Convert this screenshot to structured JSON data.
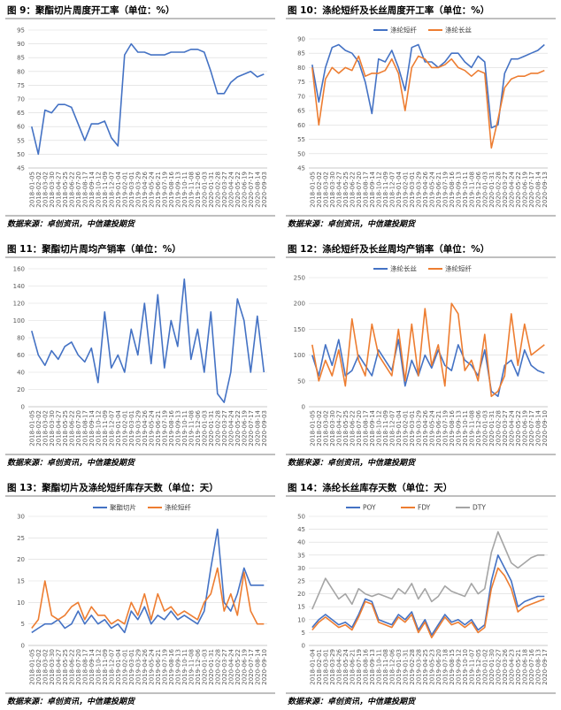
{
  "chart_data": [
    {
      "type": "line",
      "title": "图 9：聚酯切片周度开工率（单位：%）",
      "source": "数据来源：卓创资讯，中信建投期货",
      "categories": [
        "2018-01-05",
        "2018-02-02",
        "2018-03-02",
        "2018-03-30",
        "2018-04-27",
        "2018-05-25",
        "2018-06-22",
        "2018-07-20",
        "2018-08-17",
        "2018-09-14",
        "2018-10-12",
        "2018-11-09",
        "2018-12-07",
        "2019-01-04",
        "2019-02-01",
        "2019-03-01",
        "2019-03-29",
        "2019-04-26",
        "2019-05-24",
        "2019-06-21",
        "2019-07-19",
        "2019-08-16",
        "2019-09-13",
        "2019-10-11",
        "2019-11-08",
        "2019-12-06",
        "2020-01-03",
        "2020-01-31",
        "2020-02-28",
        "2020-03-27",
        "2020-04-24",
        "2020-05-22",
        "2020-06-19",
        "2020-07-17",
        "2020-08-14",
        "2020-09-03"
      ],
      "color": "#4472c4",
      "values": [
        60,
        50,
        66,
        65,
        68,
        68,
        67,
        61,
        55,
        61,
        61,
        62,
        56,
        53,
        86,
        90,
        87,
        87,
        86,
        86,
        86,
        87,
        87,
        87,
        88,
        88,
        87,
        80,
        72,
        72,
        76,
        78,
        79,
        80,
        78,
        79
      ],
      "ylim": [
        45,
        95
      ],
      "yticks": [
        45,
        50,
        55,
        60,
        65,
        70,
        75,
        80,
        85,
        90,
        95
      ],
      "grid": true
    },
    {
      "type": "line",
      "title": "图 10：涤纶短纤及长丝周度开工率（单位：%）",
      "source": "数据来源：卓创资讯，中信建投期货",
      "categories": [
        "2018-01-05",
        "2018-02-02",
        "2018-03-02",
        "2018-03-30",
        "2018-04-27",
        "2018-05-25",
        "2018-06-22",
        "2018-07-20",
        "2018-08-17",
        "2018-09-14",
        "2018-10-12",
        "2018-11-09",
        "2018-12-07",
        "2019-01-04",
        "2019-02-01",
        "2019-03-01",
        "2019-03-29",
        "2019-04-26",
        "2019-05-24",
        "2019-06-21",
        "2019-07-19",
        "2019-08-16",
        "2019-09-13",
        "2019-10-11",
        "2019-11-08",
        "2019-12-06",
        "2020-01-03",
        "2020-01-31",
        "2020-02-28",
        "2020-03-27",
        "2020-04-24",
        "2020-05-22",
        "2020-06-19",
        "2020-07-17",
        "2020-08-14",
        "2020-09-13"
      ],
      "series": [
        {
          "name": "涤纶短纤",
          "color": "#4472c4",
          "values": [
            81,
            68,
            80,
            87,
            88,
            86,
            85,
            82,
            75,
            64,
            83,
            82,
            86,
            80,
            72,
            87,
            88,
            82,
            82,
            80,
            82,
            85,
            85,
            82,
            80,
            84,
            82,
            59,
            60,
            78,
            83,
            83,
            84,
            85,
            86,
            88
          ]
        },
        {
          "name": "涤纶长丝",
          "color": "#ed7d31",
          "values": [
            80,
            60,
            76,
            80,
            78,
            80,
            79,
            84,
            77,
            78,
            78,
            79,
            83,
            78,
            65,
            80,
            84,
            83,
            80,
            80,
            81,
            83,
            80,
            79,
            77,
            79,
            78,
            52,
            62,
            73,
            76,
            77,
            77,
            78,
            78,
            79
          ]
        }
      ],
      "ylim": [
        45,
        90
      ],
      "yticks": [
        45,
        50,
        55,
        60,
        65,
        70,
        75,
        80,
        85,
        90
      ],
      "grid": true,
      "legend": "top"
    },
    {
      "type": "line",
      "title": "图 11：聚酯切片周均产销率（单位：%）",
      "source": "数据来源：卓创资讯，中信建投期货",
      "categories": [
        "2018-01-05",
        "2018-02-02",
        "2018-03-02",
        "2018-03-30",
        "2018-04-27",
        "2018-05-25",
        "2018-06-22",
        "2018-07-20",
        "2018-08-17",
        "2018-09-14",
        "2018-10-12",
        "2018-11-09",
        "2018-12-07",
        "2019-01-04",
        "2019-02-01",
        "2019-03-01",
        "2019-03-29",
        "2019-04-26",
        "2019-05-24",
        "2019-06-21",
        "2019-07-19",
        "2019-08-16",
        "2019-09-13",
        "2019-10-11",
        "2019-11-08",
        "2019-12-06",
        "2020-01-03",
        "2020-01-31",
        "2020-02-28",
        "2020-03-27",
        "2020-04-24",
        "2020-05-22",
        "2020-06-19",
        "2020-07-17",
        "2020-08-14",
        "2020-09-03"
      ],
      "color": "#4472c4",
      "values": [
        88,
        60,
        48,
        65,
        55,
        70,
        75,
        60,
        52,
        68,
        28,
        110,
        45,
        60,
        40,
        90,
        60,
        120,
        50,
        130,
        45,
        100,
        70,
        148,
        55,
        90,
        40,
        110,
        15,
        5,
        40,
        125,
        100,
        40,
        105,
        40
      ],
      "ylim": [
        0,
        160
      ],
      "yticks": [
        0,
        20,
        40,
        60,
        80,
        100,
        120,
        140,
        160
      ],
      "grid": true
    },
    {
      "type": "line",
      "title": "图 12：涤纶短纤及长丝周均产销率（单位：%）",
      "source": "数据来源：卓创资讯，中信建投期货",
      "categories": [
        "2018-01-05",
        "2018-02-02",
        "2018-03-02",
        "2018-03-30",
        "2018-04-27",
        "2018-05-25",
        "2018-06-22",
        "2018-07-20",
        "2018-08-17",
        "2018-09-14",
        "2018-10-12",
        "2018-11-09",
        "2018-12-07",
        "2019-01-04",
        "2019-02-01",
        "2019-03-01",
        "2019-03-29",
        "2019-04-26",
        "2019-05-24",
        "2019-06-21",
        "2019-07-19",
        "2019-08-16",
        "2019-09-13",
        "2019-10-11",
        "2019-11-08",
        "2019-12-06",
        "2020-01-03",
        "2020-01-31",
        "2020-02-28",
        "2020-03-27",
        "2020-04-24",
        "2020-05-22",
        "2020-06-19",
        "2020-07-17",
        "2020-08-14",
        "2020-09-10"
      ],
      "series": [
        {
          "name": "涤纶长丝",
          "color": "#4472c4",
          "values": [
            100,
            60,
            120,
            80,
            130,
            60,
            70,
            100,
            80,
            60,
            110,
            90,
            70,
            130,
            40,
            90,
            60,
            100,
            75,
            110,
            80,
            70,
            120,
            90,
            80,
            60,
            110,
            30,
            20,
            80,
            90,
            60,
            110,
            80,
            70,
            65
          ]
        },
        {
          "name": "涤纶短纤",
          "color": "#ed7d31",
          "values": [
            120,
            50,
            90,
            60,
            110,
            40,
            170,
            90,
            60,
            160,
            100,
            80,
            60,
            150,
            50,
            160,
            60,
            190,
            80,
            120,
            40,
            200,
            180,
            70,
            90,
            50,
            140,
            20,
            30,
            60,
            180,
            80,
            160,
            100,
            110,
            120
          ]
        }
      ],
      "ylim": [
        0,
        250
      ],
      "yticks": [
        0,
        50,
        100,
        150,
        200,
        250
      ],
      "grid": true,
      "legend": "top"
    },
    {
      "type": "line",
      "title": "图 13：聚酯切片及涤纶短纤库存天数（单位：天）",
      "source": "数据来源：卓创资讯，中信建投期货",
      "categories": [
        "2018-01-05",
        "2018-02-02",
        "2018-03-02",
        "2018-03-30",
        "2018-04-27",
        "2018-05-25",
        "2018-06-22",
        "2018-07-20",
        "2018-08-17",
        "2018-09-14",
        "2018-10-12",
        "2018-11-09",
        "2018-12-07",
        "2019-01-04",
        "2019-02-01",
        "2019-03-01",
        "2019-03-29",
        "2019-04-26",
        "2019-05-24",
        "2019-06-21",
        "2019-07-19",
        "2019-08-16",
        "2019-09-13",
        "2019-10-11",
        "2019-11-08",
        "2019-12-06",
        "2020-01-03",
        "2020-01-31",
        "2020-02-28",
        "2020-03-27",
        "2020-04-24",
        "2020-05-22",
        "2020-06-19",
        "2020-07-17",
        "2020-08-14",
        "2020-09-10"
      ],
      "series": [
        {
          "name": "聚酯切片",
          "color": "#4472c4",
          "values": [
            3,
            4,
            5,
            5,
            6,
            4,
            5,
            8,
            5,
            7,
            5,
            6,
            4,
            5,
            3,
            8,
            6,
            9,
            5,
            7,
            6,
            8,
            6,
            7,
            6,
            5,
            8,
            18,
            27,
            10,
            8,
            12,
            18,
            14,
            14,
            14
          ]
        },
        {
          "name": "涤纶短纤",
          "color": "#ed7d31",
          "values": [
            4,
            6,
            15,
            7,
            6,
            7,
            9,
            10,
            6,
            9,
            7,
            7,
            5,
            6,
            5,
            10,
            7,
            12,
            6,
            12,
            8,
            9,
            7,
            8,
            7,
            6,
            10,
            12,
            18,
            8,
            12,
            7,
            17,
            8,
            5,
            5
          ]
        }
      ],
      "ylim": [
        0,
        30
      ],
      "yticks": [
        0,
        5,
        10,
        15,
        20,
        25,
        30
      ],
      "grid": true,
      "legend": "top"
    },
    {
      "type": "line",
      "title": "图 14：涤纶长丝库存天数（单位：天）",
      "source": "数据来源：卓创资讯，中信建投期货",
      "categories": [
        "2018-01-04",
        "2018-02-01",
        "2018-03-01",
        "2018-03-29",
        "2018-04-26",
        "2018-05-24",
        "2018-06-21",
        "2018-07-19",
        "2018-08-16",
        "2018-09-13",
        "2018-10-11",
        "2018-11-08",
        "2018-12-06",
        "2019-01-03",
        "2019-01-31",
        "2019-02-28",
        "2019-03-28",
        "2019-04-25",
        "2019-05-23",
        "2019-06-20",
        "2019-07-18",
        "2019-08-15",
        "2019-09-12",
        "2019-10-10",
        "2019-11-07",
        "2019-12-05",
        "2020-01-02",
        "2020-01-30",
        "2020-02-27",
        "2020-03-26",
        "2020-04-23",
        "2020-05-21",
        "2020-06-18",
        "2020-07-16",
        "2020-08-13",
        "2020-09-17"
      ],
      "series": [
        {
          "name": "POY",
          "color": "#4472c4",
          "values": [
            7,
            10,
            12,
            10,
            8,
            9,
            7,
            12,
            18,
            17,
            10,
            9,
            8,
            12,
            10,
            13,
            6,
            10,
            4,
            8,
            12,
            9,
            10,
            8,
            10,
            6,
            8,
            25,
            35,
            30,
            25,
            15,
            17,
            18,
            19,
            19
          ]
        },
        {
          "name": "FDY",
          "color": "#ed7d31",
          "values": [
            6,
            9,
            11,
            9,
            7,
            8,
            6,
            11,
            17,
            16,
            9,
            8,
            7,
            11,
            9,
            12,
            5,
            9,
            3,
            7,
            11,
            8,
            9,
            7,
            9,
            5,
            7,
            22,
            30,
            27,
            22,
            13,
            15,
            16,
            17,
            18
          ]
        },
        {
          "name": "DTY",
          "color": "#a5a5a5",
          "values": [
            14,
            20,
            26,
            22,
            18,
            20,
            16,
            22,
            20,
            19,
            20,
            19,
            18,
            22,
            20,
            24,
            18,
            22,
            17,
            19,
            23,
            21,
            20,
            19,
            24,
            20,
            22,
            36,
            44,
            38,
            32,
            30,
            32,
            34,
            35,
            35
          ]
        }
      ],
      "ylim": [
        0,
        50
      ],
      "yticks": [
        0,
        5,
        10,
        15,
        20,
        25,
        30,
        35,
        40,
        45,
        50
      ],
      "grid": true,
      "legend": "top"
    }
  ]
}
